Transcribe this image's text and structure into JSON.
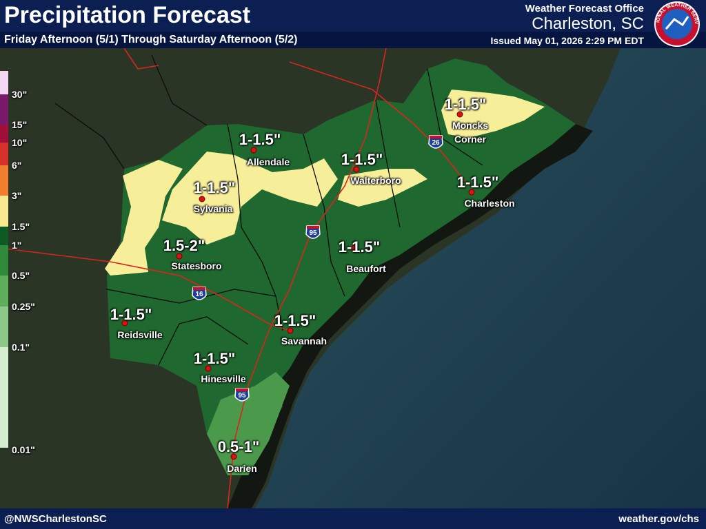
{
  "header": {
    "title": "Precipitation Forecast",
    "subtitle": "Friday Afternoon (5/1) Through Saturday Afternoon (5/2)",
    "office": "Weather Forecast Office",
    "location": "Charleston, SC",
    "issued": "Issued May 01, 2026 2:29 PM EDT",
    "logo_text": "NATIONAL WEATHER SERVICE"
  },
  "legend": [
    {
      "label": "30\"",
      "color": "#f3d7f3"
    },
    {
      "label": "15\"",
      "color": "#7a1a6a"
    },
    {
      "label": "10\"",
      "color": "#a0103a"
    },
    {
      "label": "6\"",
      "color": "#d8302a"
    },
    {
      "label": "3\"",
      "color": "#f08030"
    },
    {
      "label": "1.5\"",
      "color": "#f8e890"
    },
    {
      "label": "1\"",
      "color": "#0d5a26"
    },
    {
      "label": "0.5\"",
      "color": "#2f8a3c"
    },
    {
      "label": "0.25\"",
      "color": "#5fae5c"
    },
    {
      "label": "0.1\"",
      "color": "#8dc88a"
    },
    {
      "label": "0.01\"",
      "color": "#d4ecd0"
    }
  ],
  "places": [
    {
      "name": "Allendale",
      "amount": "1-1.5\""
    },
    {
      "name": "Sylvania",
      "amount": "1-1.5\""
    },
    {
      "name": "Statesboro",
      "amount": "1.5-2\""
    },
    {
      "name": "Reidsville",
      "amount": "1-1.5\""
    },
    {
      "name": "Hinesville",
      "amount": "1-1.5\""
    },
    {
      "name": "Savannah",
      "amount": "1-1.5\""
    },
    {
      "name": "Beaufort",
      "amount": "1-1.5\""
    },
    {
      "name": "Walterboro",
      "amount": "1-1.5\""
    },
    {
      "name": "Moncks Corner",
      "amount": "1-1.5\""
    },
    {
      "name": "Charleston",
      "amount": "1-1.5\""
    },
    {
      "name": "Darien",
      "amount": "0.5-1\""
    }
  ],
  "highways": [
    "95",
    "16",
    "26",
    "95"
  ],
  "footer": {
    "left": "@NWSCharlestonSC",
    "right": "weather.gov/chs"
  }
}
